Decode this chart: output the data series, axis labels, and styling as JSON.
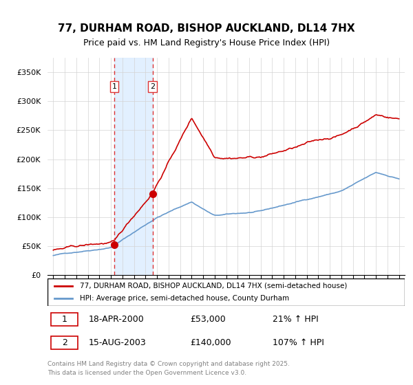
{
  "title": "77, DURHAM ROAD, BISHOP AUCKLAND, DL14 7HX",
  "subtitle": "Price paid vs. HM Land Registry's House Price Index (HPI)",
  "legend_line1": "77, DURHAM ROAD, BISHOP AUCKLAND, DL14 7HX (semi-detached house)",
  "legend_line2": "HPI: Average price, semi-detached house, County Durham",
  "footnote1": "Contains HM Land Registry data © Crown copyright and database right 2025.",
  "footnote2": "This data is licensed under the Open Government Licence v3.0.",
  "sale1_label": "1",
  "sale1_date": "18-APR-2000",
  "sale1_price": "£53,000",
  "sale1_hpi": "21% ↑ HPI",
  "sale2_label": "2",
  "sale2_date": "15-AUG-2003",
  "sale2_price": "£140,000",
  "sale2_hpi": "107% ↑ HPI",
  "house_color": "#cc0000",
  "hpi_color": "#6699cc",
  "shade_color": "#ddeeff",
  "vline_color": "#dd3333",
  "ylim_max": 375000,
  "yticks": [
    0,
    50000,
    100000,
    150000,
    200000,
    250000,
    300000,
    350000
  ],
  "ytick_labels": [
    "£0",
    "£50K",
    "£100K",
    "£150K",
    "£200K",
    "£250K",
    "£300K",
    "£350K"
  ],
  "sale1_year": 2000.3,
  "sale2_year": 2003.62,
  "sale1_price_val": 53000,
  "sale2_price_val": 140000,
  "xmin": 1994.5,
  "xmax": 2025.5
}
